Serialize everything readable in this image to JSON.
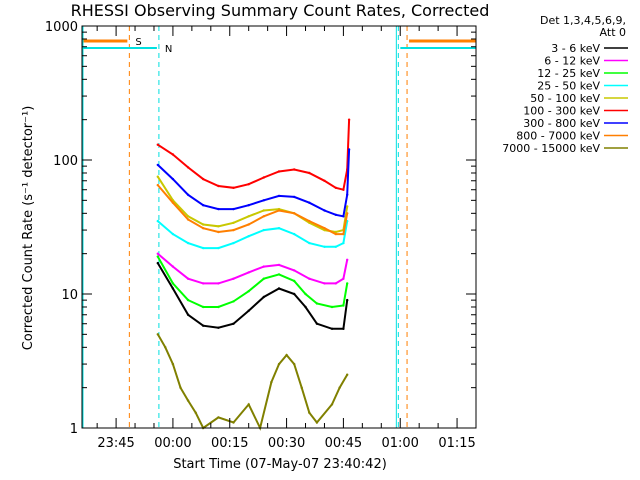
{
  "chart_data": {
    "type": "line",
    "title": "RHESSI Observing Summary Count Rates, Corrected",
    "xlabel": "Start Time (07-May-07 23:40:42)",
    "ylabel": "Corrected Count Rate (s⁻¹ detector⁻¹)",
    "x_axis": {
      "unit": "minutes after 23:40",
      "range": [
        -4,
        100
      ],
      "ticks": [
        5,
        20,
        35,
        50,
        65,
        80,
        95
      ],
      "tick_labels": [
        "23:45",
        "00:00",
        "00:15",
        "00:30",
        "00:45",
        "01:00",
        "01:15"
      ]
    },
    "y_axis": {
      "scale": "log",
      "range": [
        1,
        1000
      ],
      "ticks": [
        1,
        10,
        100,
        1000
      ],
      "tick_labels": [
        "1",
        "10",
        "100",
        "1000"
      ]
    },
    "legend_header": [
      "Det 1,3,4,5,6,9,",
      "Att 0"
    ],
    "markers": [
      {
        "label": "S",
        "color": "#ff7f00",
        "x_start": 8.5,
        "x_end": 81.8
      },
      {
        "label": "N",
        "color": "#00e0e0",
        "x_start": 16.3,
        "x_end": 79.5
      }
    ],
    "series": [
      {
        "name": "3 - 6 keV",
        "color": "#000000",
        "points": [
          [
            16,
            17
          ],
          [
            20,
            11
          ],
          [
            24,
            7
          ],
          [
            28,
            5.8
          ],
          [
            32,
            5.6
          ],
          [
            36,
            6
          ],
          [
            40,
            7.5
          ],
          [
            44,
            9.5
          ],
          [
            48,
            11
          ],
          [
            52,
            10
          ],
          [
            55,
            8
          ],
          [
            58,
            6
          ],
          [
            62,
            5.5
          ],
          [
            65,
            5.5
          ],
          [
            66,
            9
          ]
        ]
      },
      {
        "name": "6 - 12 keV",
        "color": "#ff00ff",
        "points": [
          [
            16,
            20
          ],
          [
            20,
            16
          ],
          [
            24,
            13
          ],
          [
            28,
            12
          ],
          [
            32,
            12
          ],
          [
            36,
            13
          ],
          [
            40,
            14.5
          ],
          [
            44,
            16
          ],
          [
            48,
            16.5
          ],
          [
            52,
            15
          ],
          [
            56,
            13
          ],
          [
            60,
            12
          ],
          [
            63,
            12
          ],
          [
            65,
            13
          ],
          [
            66,
            18
          ]
        ]
      },
      {
        "name": "12 - 25 keV",
        "color": "#00ff00",
        "points": [
          [
            16,
            19
          ],
          [
            20,
            12
          ],
          [
            24,
            9
          ],
          [
            28,
            8
          ],
          [
            32,
            8
          ],
          [
            36,
            8.8
          ],
          [
            40,
            10.5
          ],
          [
            44,
            13
          ],
          [
            48,
            14
          ],
          [
            52,
            12.5
          ],
          [
            55,
            10
          ],
          [
            58,
            8.5
          ],
          [
            62,
            8
          ],
          [
            65,
            8.2
          ],
          [
            66,
            12
          ]
        ]
      },
      {
        "name": "25 - 50 keV",
        "color": "#00ffff",
        "points": [
          [
            16,
            35
          ],
          [
            20,
            28
          ],
          [
            24,
            24
          ],
          [
            28,
            22
          ],
          [
            32,
            22
          ],
          [
            36,
            24
          ],
          [
            40,
            27
          ],
          [
            44,
            30
          ],
          [
            48,
            31
          ],
          [
            52,
            28
          ],
          [
            56,
            24
          ],
          [
            60,
            22.5
          ],
          [
            63,
            22.5
          ],
          [
            65,
            24
          ],
          [
            66,
            35
          ]
        ]
      },
      {
        "name": "50 - 100 keV",
        "color": "#c8c800",
        "points": [
          [
            16,
            75
          ],
          [
            20,
            50
          ],
          [
            24,
            38
          ],
          [
            28,
            33
          ],
          [
            32,
            32
          ],
          [
            36,
            34
          ],
          [
            40,
            38
          ],
          [
            44,
            42
          ],
          [
            48,
            43
          ],
          [
            52,
            40
          ],
          [
            56,
            34
          ],
          [
            60,
            30
          ],
          [
            63,
            29
          ],
          [
            65,
            30
          ],
          [
            66,
            45
          ]
        ]
      },
      {
        "name": "100 - 300 keV",
        "color": "#ff0000",
        "points": [
          [
            16,
            130
          ],
          [
            20,
            110
          ],
          [
            24,
            88
          ],
          [
            28,
            72
          ],
          [
            32,
            64
          ],
          [
            36,
            62
          ],
          [
            40,
            66
          ],
          [
            44,
            74
          ],
          [
            48,
            82
          ],
          [
            52,
            85
          ],
          [
            56,
            80
          ],
          [
            60,
            70
          ],
          [
            63,
            62
          ],
          [
            65,
            60
          ],
          [
            66,
            85
          ],
          [
            66.5,
            200
          ]
        ]
      },
      {
        "name": "300 - 800 keV",
        "color": "#0000ff",
        "points": [
          [
            16,
            92
          ],
          [
            20,
            72
          ],
          [
            24,
            55
          ],
          [
            28,
            46
          ],
          [
            32,
            43
          ],
          [
            36,
            43
          ],
          [
            40,
            46
          ],
          [
            44,
            50
          ],
          [
            48,
            54
          ],
          [
            52,
            53
          ],
          [
            56,
            48
          ],
          [
            60,
            42
          ],
          [
            63,
            39
          ],
          [
            65,
            38
          ],
          [
            66,
            55
          ],
          [
            66.5,
            120
          ]
        ]
      },
      {
        "name": "800 - 7000 keV",
        "color": "#ff7f00",
        "points": [
          [
            16,
            65
          ],
          [
            20,
            48
          ],
          [
            24,
            36
          ],
          [
            28,
            31
          ],
          [
            32,
            29
          ],
          [
            36,
            30
          ],
          [
            40,
            33
          ],
          [
            44,
            38
          ],
          [
            48,
            42
          ],
          [
            52,
            40
          ],
          [
            56,
            35
          ],
          [
            60,
            31
          ],
          [
            63,
            28
          ],
          [
            65,
            28
          ],
          [
            66,
            40
          ]
        ]
      },
      {
        "name": "7000 - 15000 keV",
        "color": "#808000",
        "points": [
          [
            16,
            5
          ],
          [
            18,
            4
          ],
          [
            20,
            3
          ],
          [
            22,
            2
          ],
          [
            24,
            1.6
          ],
          [
            26,
            1.3
          ],
          [
            28,
            1
          ],
          [
            32,
            1.2
          ],
          [
            36,
            1.1
          ],
          [
            40,
            1.5
          ],
          [
            43,
            1
          ],
          [
            46,
            2.2
          ],
          [
            48,
            3
          ],
          [
            50,
            3.5
          ],
          [
            52,
            3
          ],
          [
            54,
            2
          ],
          [
            56,
            1.3
          ],
          [
            58,
            1.1
          ],
          [
            62,
            1.5
          ],
          [
            64,
            2
          ],
          [
            66,
            2.5
          ]
        ]
      }
    ]
  }
}
